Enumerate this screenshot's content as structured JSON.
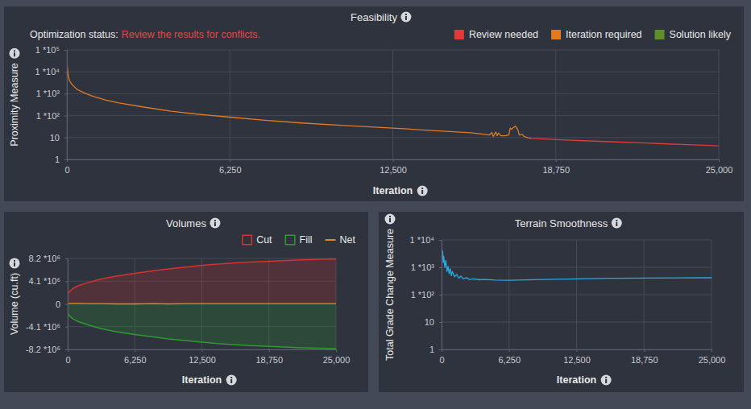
{
  "chart_data": [
    {
      "type": "line",
      "title": "Feasibility",
      "subtitle": [
        "Optimization status:",
        "Review the results for conflicts."
      ],
      "x_label": "Iteration",
      "y_label": "Proximity Measure",
      "log": "y",
      "grid": true,
      "legend": "top-right",
      "xlim": [
        0,
        25000
      ],
      "xticks": [
        0,
        {
          "value": 6250,
          "label": "6,250"
        },
        {
          "value": 12500,
          "label": "12,500"
        },
        {
          "value": 18750,
          "label": "18,750"
        },
        {
          "value": 25000,
          "label": "25,000"
        }
      ],
      "ylim": [
        1,
        100000
      ],
      "yticks": [
        1,
        10,
        {
          "value": 100,
          "label": "1 *10²"
        },
        {
          "value": 1000,
          "label": "1 *10³"
        },
        {
          "value": 10000,
          "label": "1 *10⁴"
        },
        {
          "value": 100000,
          "label": "1 *10⁵"
        }
      ],
      "series": [
        {
          "name": "Review needed",
          "color": "#e03a3a",
          "x": [
            17800,
            18750,
            20000,
            21000,
            22000,
            23000,
            24000,
            25000
          ],
          "values": [
            9.2,
            8.0,
            7.0,
            6.3,
            5.7,
            5.1,
            4.6,
            4.2
          ]
        },
        {
          "name": "Iteration required",
          "color": "#e07b22",
          "x": [
            0,
            50,
            100,
            200,
            400,
            700,
            1000,
            1500,
            2000,
            3000,
            4000,
            5000,
            6250,
            7500,
            9000,
            10500,
            12500,
            14000,
            15500,
            16200,
            16300,
            16350,
            16450,
            16500,
            16550,
            16650,
            16800,
            16950,
            17000,
            17050,
            17150,
            17200,
            17300,
            17350,
            17450,
            17550,
            17700,
            17800
          ],
          "values": [
            30000,
            6800,
            4000,
            2600,
            1550,
            1050,
            760,
            510,
            380,
            240,
            160,
            117,
            85,
            63,
            46,
            36,
            27,
            21,
            16.5,
            13,
            17,
            11,
            18,
            12,
            16,
            12,
            12,
            13,
            27,
            24,
            30,
            33,
            22,
            13,
            14,
            11,
            9.6,
            9.2
          ]
        },
        {
          "name": "Solution likely",
          "color": "#5f8f2a",
          "x": [],
          "values": []
        }
      ]
    },
    {
      "type": "area",
      "title": "Volumes",
      "x_label": "Iteration",
      "y_label": "Volume (cu.ft)",
      "grid": true,
      "legend": "top-right",
      "xlim": [
        0,
        25000
      ],
      "xticks": [
        0,
        {
          "value": 6250,
          "label": "6,250"
        },
        {
          "value": 12500,
          "label": "12,500"
        },
        {
          "value": 18750,
          "label": "18,750"
        },
        {
          "value": 25000,
          "label": "25,000"
        }
      ],
      "ylim": [
        -8200000,
        8200000
      ],
      "yticks": [
        {
          "value": -8200000,
          "label": "-8.2 *10⁶"
        },
        {
          "value": -4100000,
          "label": "-4.1 *10⁶"
        },
        0,
        {
          "value": 4100000,
          "label": "4.1 *10⁶"
        },
        {
          "value": 8200000,
          "label": "8.2 *10⁶"
        }
      ],
      "x": [
        0,
        250,
        500,
        1000,
        2000,
        3125,
        4500,
        6250,
        8000,
        9375,
        11000,
        12500,
        14000,
        15625,
        17000,
        18750,
        20500,
        21875,
        23500,
        25000
      ],
      "series": [
        {
          "name": "Cut",
          "color": "#d8322f",
          "type": "area",
          "values": [
            1800000,
            2400000,
            2800000,
            3300000,
            3900000,
            4500000,
            5000000,
            5500000,
            6000000,
            6300000,
            6650000,
            6950000,
            7200000,
            7400000,
            7550000,
            7700000,
            7850000,
            7950000,
            8050000,
            8100000
          ]
        },
        {
          "name": "Fill",
          "color": "#2f9a2f",
          "type": "area",
          "values": [
            -1700000,
            -2300000,
            -2700000,
            -3200000,
            -3850000,
            -4450000,
            -5000000,
            -5500000,
            -5950000,
            -6300000,
            -6600000,
            -6900000,
            -7150000,
            -7350000,
            -7500000,
            -7650000,
            -7800000,
            -7900000,
            -8000000,
            -8050000
          ]
        },
        {
          "name": "Net",
          "color": "#e08a1e",
          "type": "line",
          "values": [
            100000,
            100000,
            100000,
            100000,
            50000,
            50000,
            0,
            0,
            50000,
            0,
            50000,
            50000,
            50000,
            50000,
            50000,
            50000,
            50000,
            50000,
            50000,
            50000
          ]
        }
      ]
    },
    {
      "type": "line",
      "title": "Terrain Smoothness",
      "x_label": "Iteration",
      "y_label": "Total Grade Change Measure",
      "log": "y",
      "grid": true,
      "xlim": [
        0,
        25000
      ],
      "xticks": [
        0,
        {
          "value": 6250,
          "label": "6,250"
        },
        {
          "value": 12500,
          "label": "12,500"
        },
        {
          "value": 18750,
          "label": "18,750"
        },
        {
          "value": 25000,
          "label": "25,000"
        }
      ],
      "ylim": [
        1,
        10000
      ],
      "yticks": [
        1,
        10,
        {
          "value": 100,
          "label": "1 *10²"
        },
        {
          "value": 1000,
          "label": "1 *10³"
        },
        {
          "value": 10000,
          "label": "1 *10⁴"
        }
      ],
      "x": [
        0,
        50,
        100,
        150,
        200,
        300,
        400,
        500,
        600,
        700,
        800,
        900,
        1000,
        1200,
        1400,
        1600,
        1800,
        2000,
        2300,
        2600,
        3000,
        3500,
        4000,
        5000,
        6250,
        9375,
        12500,
        15625,
        18750,
        21875,
        25000
      ],
      "series": [
        {
          "color": "#2ba8e2",
          "values": [
            6000,
            2000,
            4000,
            1500,
            2500,
            1000,
            1800,
            700,
            1100,
            600,
            900,
            500,
            700,
            450,
            550,
            400,
            480,
            380,
            420,
            360,
            380,
            350,
            360,
            340,
            335,
            360,
            380,
            395,
            405,
            410,
            415
          ]
        }
      ]
    }
  ]
}
